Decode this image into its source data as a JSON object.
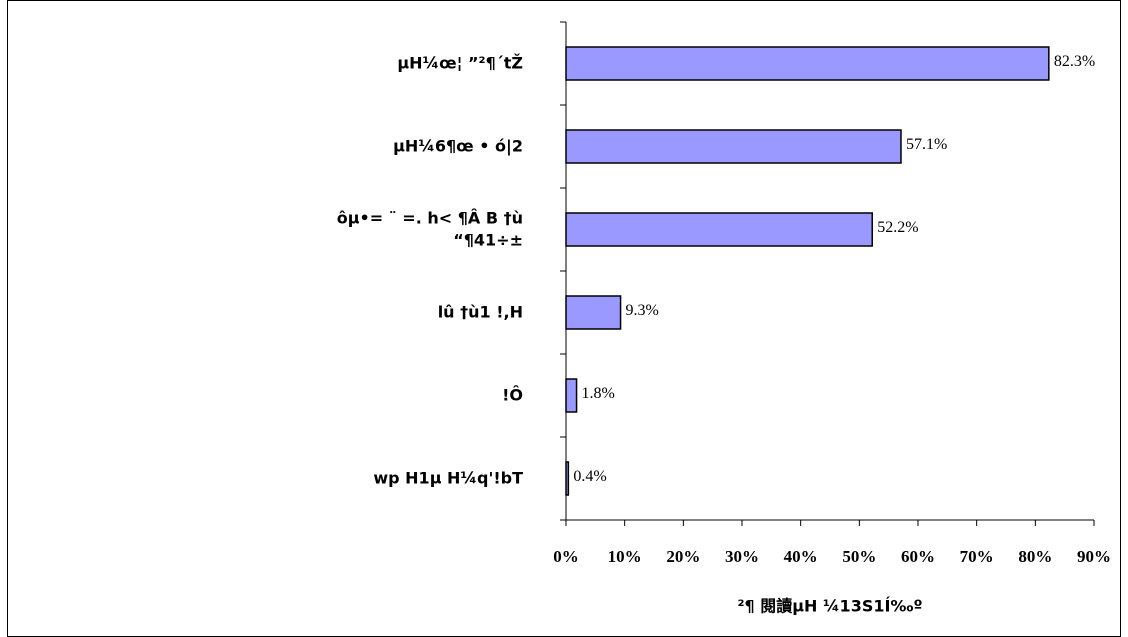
{
  "chart_data": {
    "type": "bar",
    "orientation": "horizontal",
    "x_label": "²¶ 閱讀µH ¼13S1Í‰º",
    "categories": [
      "µH¼œ¦ ”²¶´tŽ",
      "µH¼6¶œ • ó|2",
      "ôµ•= ¨   =. h< ¶Â B †ù\n“¶41÷±",
      "lû †ù1   !,H",
      "!Ô",
      "wp H1µ  H¼q'!bT"
    ],
    "values": [
      82.3,
      57.1,
      52.2,
      9.3,
      1.8,
      0.4
    ],
    "value_labels": [
      "82.3%",
      "57.1%",
      "52.2%",
      "9.3%",
      "1.8%",
      "0.4%"
    ],
    "color": "#9999ff",
    "xlim": [
      0,
      90
    ],
    "xticks": [
      {
        "value": 0,
        "label": "0%"
      },
      {
        "value": 10,
        "label": "10%"
      },
      {
        "value": 20,
        "label": "20%"
      },
      {
        "value": 30,
        "label": "30%"
      },
      {
        "value": 40,
        "label": "40%"
      },
      {
        "value": 50,
        "label": "50%"
      },
      {
        "value": 60,
        "label": "60%"
      },
      {
        "value": 70,
        "label": "70%"
      },
      {
        "value": 80,
        "label": "80%"
      },
      {
        "value": 90,
        "label": "90%"
      }
    ],
    "grid": false
  }
}
